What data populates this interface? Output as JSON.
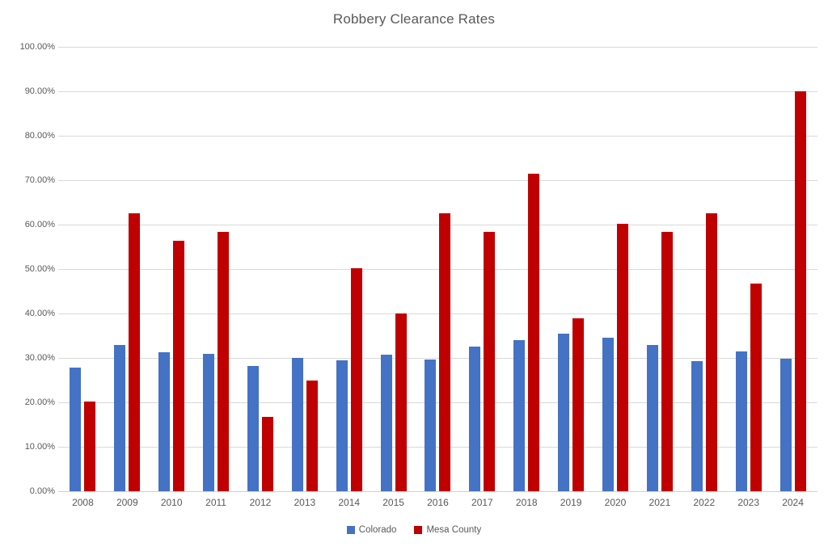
{
  "chart_data": {
    "type": "bar",
    "title": "Robbery Clearance Rates",
    "xlabel": "",
    "ylabel": "",
    "categories": [
      "2008",
      "2009",
      "2010",
      "2011",
      "2012",
      "2013",
      "2014",
      "2015",
      "2016",
      "2017",
      "2018",
      "2019",
      "2020",
      "2021",
      "2022",
      "2023",
      "2024"
    ],
    "series": [
      {
        "name": "Colorado",
        "color": "#4472C4",
        "values": [
          27.8,
          32.9,
          31.2,
          30.9,
          28.1,
          30.0,
          29.5,
          30.8,
          29.6,
          32.6,
          34.0,
          35.5,
          34.5,
          33.0,
          29.3,
          31.4,
          29.8
        ]
      },
      {
        "name": "Mesa County",
        "color": "#C00000",
        "values": [
          20.1,
          62.6,
          56.3,
          58.3,
          16.8,
          25.0,
          50.1,
          40.0,
          62.5,
          58.3,
          71.5,
          38.9,
          60.1,
          58.3,
          62.5,
          46.8,
          90.0
        ]
      }
    ],
    "y_axis": {
      "min": 0,
      "max": 100,
      "tick_step": 10,
      "tick_labels": [
        "0.00%",
        "10.00%",
        "20.00%",
        "30.00%",
        "40.00%",
        "50.00%",
        "60.00%",
        "70.00%",
        "80.00%",
        "90.00%",
        "100.00%"
      ]
    },
    "grid": true,
    "legend_position": "bottom",
    "colors": {
      "text": "#595959",
      "gridline": "#D9D9D9",
      "background": "#FFFFFF"
    }
  }
}
